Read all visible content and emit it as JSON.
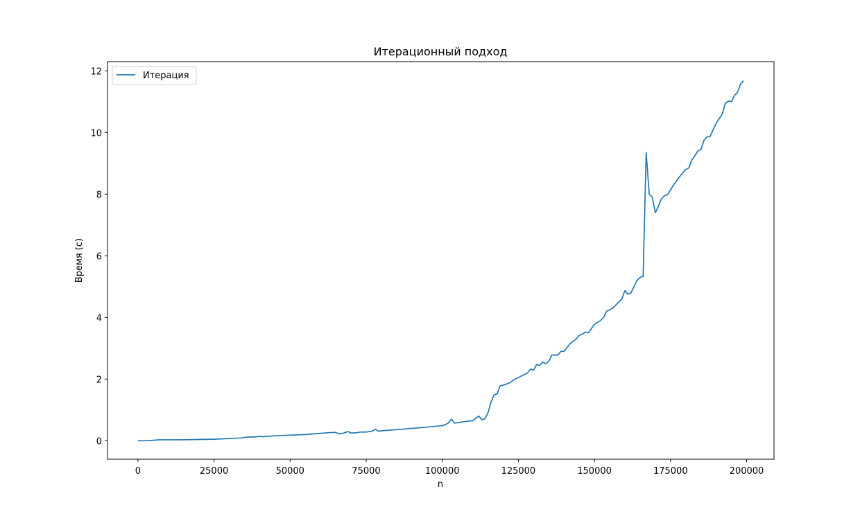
{
  "chart_data": {
    "type": "line",
    "title": "Итерационный подход",
    "xlabel": "n",
    "ylabel": "Время (с)",
    "xlim": [
      -10000,
      209000
    ],
    "ylim": [
      -0.6,
      12.3
    ],
    "xticks": [
      0,
      25000,
      50000,
      75000,
      100000,
      125000,
      150000,
      175000,
      200000
    ],
    "xtick_labels": [
      "0",
      "25000",
      "50000",
      "75000",
      "100000",
      "125000",
      "150000",
      "175000",
      "200000"
    ],
    "yticks": [
      0,
      2,
      4,
      6,
      8,
      10,
      12
    ],
    "ytick_labels": [
      "0",
      "2",
      "4",
      "6",
      "8",
      "10",
      "12"
    ],
    "grid": false,
    "legend_position": "upper left",
    "series": [
      {
        "name": "Итерация",
        "color": "#1f77b4",
        "x": [
          0,
          3000,
          7000,
          10000,
          14000,
          20000,
          25000,
          30000,
          34000,
          36000,
          38000,
          40000,
          41000,
          45000,
          50000,
          55000,
          60000,
          64000,
          65000,
          66000,
          67000,
          68000,
          69000,
          70000,
          72000,
          73000,
          75000,
          77000,
          78000,
          79000,
          81000,
          85000,
          90000,
          95000,
          100000,
          101000,
          102000,
          103000,
          104000,
          106000,
          108000,
          110000,
          112000,
          113000,
          114000,
          115000,
          116000,
          117000,
          118000,
          119000,
          120000,
          122000,
          124000,
          126000,
          128000,
          129000,
          130000,
          131000,
          132000,
          133000,
          134000,
          135000,
          136000,
          138000,
          139000,
          140000,
          142000,
          144000,
          145000,
          146000,
          147000,
          148000,
          150000,
          152000,
          153000,
          154000,
          156000,
          158000,
          159000,
          160000,
          161000,
          162000,
          163000,
          164000,
          165000,
          166000,
          167000,
          168000,
          169000,
          170000,
          171000,
          172000,
          173000,
          174000,
          176000,
          178000,
          180000,
          181000,
          182000,
          184000,
          185000,
          186000,
          187000,
          188000,
          190000,
          192000,
          193000,
          194000,
          195000,
          196000,
          197000,
          198000,
          199000
        ],
        "y": [
          0.0,
          0.0,
          0.03,
          0.03,
          0.03,
          0.04,
          0.05,
          0.07,
          0.09,
          0.12,
          0.12,
          0.14,
          0.13,
          0.16,
          0.18,
          0.2,
          0.24,
          0.27,
          0.27,
          0.22,
          0.23,
          0.26,
          0.3,
          0.25,
          0.26,
          0.28,
          0.28,
          0.31,
          0.37,
          0.31,
          0.33,
          0.36,
          0.4,
          0.44,
          0.49,
          0.52,
          0.58,
          0.7,
          0.57,
          0.6,
          0.63,
          0.65,
          0.8,
          0.68,
          0.71,
          0.9,
          1.25,
          1.48,
          1.52,
          1.78,
          1.8,
          1.87,
          2.0,
          2.1,
          2.2,
          2.32,
          2.29,
          2.47,
          2.44,
          2.55,
          2.5,
          2.58,
          2.78,
          2.78,
          2.9,
          2.9,
          3.15,
          3.3,
          3.42,
          3.45,
          3.53,
          3.5,
          3.78,
          3.9,
          4.0,
          4.2,
          4.3,
          4.5,
          4.6,
          4.87,
          4.75,
          4.8,
          5.0,
          5.2,
          5.3,
          5.33,
          9.35,
          8.0,
          7.9,
          7.4,
          7.6,
          7.85,
          7.95,
          7.98,
          8.3,
          8.57,
          8.8,
          8.85,
          9.1,
          9.4,
          9.45,
          9.75,
          9.86,
          9.87,
          10.3,
          10.6,
          10.95,
          11.02,
          11.0,
          11.2,
          11.3,
          11.57,
          11.68
        ]
      }
    ]
  }
}
